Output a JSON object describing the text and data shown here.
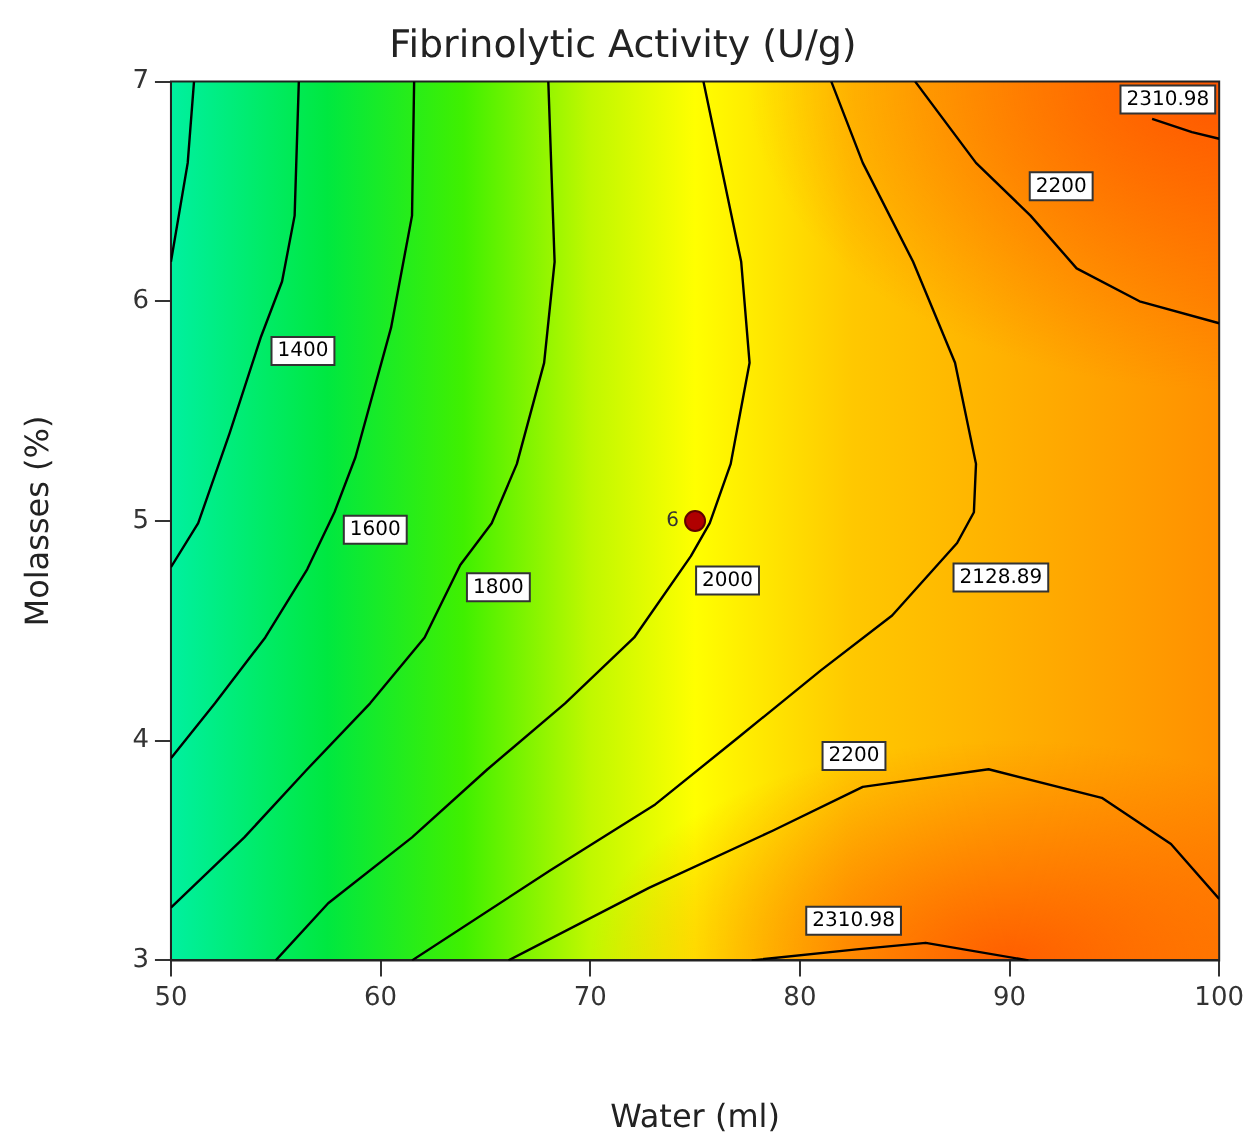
{
  "chart_data": {
    "type": "line",
    "title": "Fibrinolytic Activity (U/g)",
    "xlabel": "Water (ml)",
    "ylabel": "Molasses (%)",
    "xlim": [
      50,
      100
    ],
    "xticks": [
      50,
      60,
      70,
      80,
      90,
      100
    ],
    "ylim": [
      3,
      7
    ],
    "yticks": [
      3,
      4,
      5,
      6,
      7
    ],
    "grid": false,
    "legend": false,
    "marker": "none",
    "line_style": "solid",
    "series": [
      {
        "color": "#000000",
        "x": [
          51.1,
          50.8,
          50
        ],
        "values": [
          7,
          6.63,
          6.18
        ]
      },
      {
        "name": "1400",
        "color": "#000000",
        "x": [
          56.1,
          55.9,
          55.3,
          54.3,
          52.8,
          51.3,
          50
        ],
        "values": [
          7,
          6.39,
          6.09,
          5.84,
          5.4,
          4.99,
          4.79
        ]
      },
      {
        "name": "1600",
        "color": "#000000",
        "x": [
          61.6,
          61.5,
          60.5,
          58.8,
          57.8,
          56.5,
          54.5,
          52.1,
          50
        ],
        "values": [
          7,
          6.39,
          5.88,
          5.29,
          5.04,
          4.78,
          4.47,
          4.17,
          3.92
        ]
      },
      {
        "name": "1800",
        "color": "#000000",
        "x": [
          68,
          68.3,
          67.8,
          66.5,
          65.3,
          63.8,
          62.1,
          59.5,
          56.5,
          53.5,
          50
        ],
        "values": [
          7,
          6.18,
          5.72,
          5.26,
          4.99,
          4.8,
          4.47,
          4.17,
          3.87,
          3.56,
          3.24
        ]
      },
      {
        "name": "2000",
        "color": "#000000",
        "x": [
          75.4,
          77.2,
          77.6,
          76.7,
          75.7,
          74.8,
          72.1,
          68.8,
          65.1,
          61.5,
          57.5,
          55
        ],
        "values": [
          7,
          6.18,
          5.72,
          5.26,
          4.99,
          4.84,
          4.47,
          4.17,
          3.87,
          3.56,
          3.26,
          3
        ]
      },
      {
        "name": "2128.89",
        "color": "#000000",
        "x": [
          81.5,
          83,
          85.4,
          87.4,
          88.4,
          88.3,
          87.5,
          84.4,
          81,
          77,
          73.1,
          68.1,
          61.5
        ],
        "values": [
          7,
          6.63,
          6.18,
          5.72,
          5.26,
          5.04,
          4.9,
          4.57,
          4.32,
          4.01,
          3.71,
          3.41,
          3
        ]
      },
      {
        "name": "2200",
        "color": "#000000",
        "x": [
          85.5,
          88.4,
          91,
          93.2,
          96.2,
          100
        ],
        "values": [
          7,
          6.63,
          6.39,
          6.15,
          6,
          5.9
        ]
      },
      {
        "name": "2310.98",
        "color": "#000000",
        "x": [
          96.8,
          98.7,
          100
        ],
        "values": [
          6.83,
          6.77,
          6.74
        ]
      },
      {
        "name": "2200",
        "color": "#000000",
        "x": [
          66.1,
          72.8,
          78.7,
          83,
          89,
          94.4,
          97.7,
          100
        ],
        "values": [
          3,
          3.33,
          3.59,
          3.79,
          3.87,
          3.74,
          3.53,
          3.28
        ]
      },
      {
        "name": "2310.98",
        "color": "#000000",
        "x": [
          77.7,
          82.7,
          86,
          90.9
        ],
        "values": [
          3,
          3.05,
          3.08,
          3
        ]
      },
      {
        "type": "scatter",
        "name": "6",
        "marker": "circle",
        "color": "#b00000",
        "x": [
          75
        ],
        "values": [
          5
        ]
      }
    ]
  }
}
